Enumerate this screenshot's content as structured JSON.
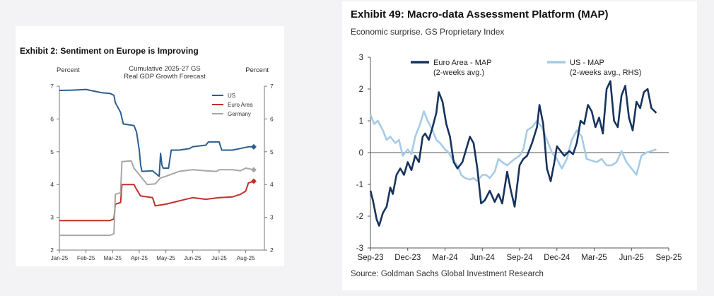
{
  "left": {
    "exhibit_title": "Exhibit 2: Sentiment on Europe is Improving",
    "chart_data": {
      "type": "line",
      "title_lines": [
        "Cumulative 2025-27 GS",
        "Real GDP Growth Forecast"
      ],
      "ylabel_left": "Percent",
      "ylabel_right": "Percent",
      "x_ticks": [
        "Jan-25",
        "Feb-25",
        "Mar-25",
        "Apr-25",
        "May-25",
        "Jun-25",
        "Jul-25",
        "Aug-25"
      ],
      "xlim": [
        0,
        7.7
      ],
      "y_ticks": [
        2,
        3,
        4,
        5,
        6,
        7
      ],
      "ylim": [
        2,
        7
      ],
      "legend_position": "top-right",
      "series": [
        {
          "name": "US",
          "color": "#2b5e8e",
          "points": [
            [
              0,
              6.87
            ],
            [
              0.5,
              6.88
            ],
            [
              1,
              6.9
            ],
            [
              1.3,
              6.85
            ],
            [
              1.6,
              6.8
            ],
            [
              1.9,
              6.78
            ],
            [
              2.05,
              6.72
            ],
            [
              2.1,
              6.5
            ],
            [
              2.3,
              6.2
            ],
            [
              2.4,
              5.85
            ],
            [
              2.8,
              5.8
            ],
            [
              2.9,
              5.6
            ],
            [
              3.0,
              5.05
            ],
            [
              3.05,
              4.6
            ],
            [
              3.1,
              4.4
            ],
            [
              3.5,
              4.42
            ],
            [
              3.6,
              4.35
            ],
            [
              3.75,
              4.25
            ],
            [
              3.8,
              4.95
            ],
            [
              3.85,
              4.6
            ],
            [
              3.9,
              4.5
            ],
            [
              4.1,
              4.5
            ],
            [
              4.2,
              5.05
            ],
            [
              4.5,
              5.05
            ],
            [
              4.9,
              5.1
            ],
            [
              5,
              5.15
            ],
            [
              5.5,
              5.2
            ],
            [
              5.6,
              5.3
            ],
            [
              6,
              5.3
            ],
            [
              6.1,
              5.05
            ],
            [
              6.5,
              5.05
            ],
            [
              6.8,
              5.1
            ],
            [
              7.1,
              5.15
            ],
            [
              7.3,
              5.15
            ]
          ]
        },
        {
          "name": "Euro Area",
          "color": "#c0302a",
          "points": [
            [
              0,
              2.9
            ],
            [
              0.5,
              2.9
            ],
            [
              1,
              2.9
            ],
            [
              1.9,
              2.9
            ],
            [
              2.05,
              2.95
            ],
            [
              2.1,
              3.4
            ],
            [
              2.3,
              3.45
            ],
            [
              2.35,
              4.0
            ],
            [
              2.8,
              4.0
            ],
            [
              2.9,
              3.85
            ],
            [
              3.05,
              3.65
            ],
            [
              3.5,
              3.6
            ],
            [
              3.6,
              3.35
            ],
            [
              4,
              3.4
            ],
            [
              4.5,
              3.5
            ],
            [
              5,
              3.6
            ],
            [
              5.5,
              3.55
            ],
            [
              6,
              3.6
            ],
            [
              6.5,
              3.62
            ],
            [
              6.8,
              3.7
            ],
            [
              7.0,
              3.8
            ],
            [
              7.1,
              4.05
            ],
            [
              7.3,
              4.1
            ]
          ]
        },
        {
          "name": "Germany",
          "color": "#a6a6a6",
          "points": [
            [
              0,
              2.45
            ],
            [
              1.9,
              2.45
            ],
            [
              2.05,
              2.5
            ],
            [
              2.1,
              3.7
            ],
            [
              2.3,
              3.75
            ],
            [
              2.35,
              4.7
            ],
            [
              2.7,
              4.72
            ],
            [
              2.8,
              4.5
            ],
            [
              3.0,
              4.3
            ],
            [
              3.3,
              4.0
            ],
            [
              3.6,
              4.02
            ],
            [
              3.8,
              4.2
            ],
            [
              4.0,
              4.25
            ],
            [
              4.5,
              4.4
            ],
            [
              5,
              4.45
            ],
            [
              5.5,
              4.42
            ],
            [
              5.9,
              4.4
            ],
            [
              6.0,
              4.45
            ],
            [
              6.5,
              4.45
            ],
            [
              6.8,
              4.42
            ],
            [
              7.0,
              4.5
            ],
            [
              7.3,
              4.45
            ]
          ]
        }
      ]
    }
  },
  "right": {
    "exhibit_title": "Exhibit 49: Macro-data Assessment Platform (MAP)",
    "subtitle": "Economic surprise. GS Proprietary Index",
    "source": "Source: Goldman Sachs Global Investment Research",
    "chart_data": {
      "type": "line",
      "x_ticks": [
        "Sep-23",
        "Dec-23",
        "Mar-24",
        "Jun-24",
        "Sep-24",
        "Dec-24",
        "Mar-25",
        "Jun-25",
        "Sep-25"
      ],
      "xlim": [
        0,
        24
      ],
      "y_ticks": [
        -3,
        -2,
        -1,
        0,
        1,
        2,
        3
      ],
      "ylim": [
        -3,
        3
      ],
      "legend_position": "top",
      "series": [
        {
          "name": "Euro Area - MAP",
          "legend_note": "(2-weeks avg.)",
          "color": "#17335e",
          "points": [
            [
              0,
              -1.2
            ],
            [
              0.2,
              -1.5
            ],
            [
              0.5,
              -2.1
            ],
            [
              0.7,
              -2.3
            ],
            [
              1,
              -1.9
            ],
            [
              1.3,
              -1.7
            ],
            [
              1.6,
              -1.1
            ],
            [
              1.8,
              -1.3
            ],
            [
              2.1,
              -0.7
            ],
            [
              2.4,
              -0.5
            ],
            [
              2.7,
              -0.7
            ],
            [
              3,
              -0.3
            ],
            [
              3.3,
              -0.55
            ],
            [
              3.6,
              -0.1
            ],
            [
              3.9,
              -0.3
            ],
            [
              4.2,
              0.5
            ],
            [
              4.4,
              0.6
            ],
            [
              4.7,
              0.4
            ],
            [
              5,
              0.8
            ],
            [
              5.3,
              1.25
            ],
            [
              5.5,
              1.9
            ],
            [
              5.8,
              1.6
            ],
            [
              6.1,
              0.9
            ],
            [
              6.4,
              0.5
            ],
            [
              6.7,
              -0.3
            ],
            [
              7,
              -0.5
            ],
            [
              7.4,
              -0.3
            ],
            [
              7.7,
              0.1
            ],
            [
              8,
              0.5
            ],
            [
              8.3,
              0.3
            ],
            [
              8.6,
              -0.5
            ],
            [
              8.9,
              -1.6
            ],
            [
              9.2,
              -1.5
            ],
            [
              9.6,
              -1.2
            ],
            [
              10,
              -1.55
            ],
            [
              10.3,
              -1.3
            ],
            [
              10.6,
              -1.6
            ],
            [
              11,
              -0.6
            ],
            [
              11.3,
              -1.2
            ],
            [
              11.6,
              -1.7
            ],
            [
              12,
              -0.4
            ],
            [
              12.3,
              -0.2
            ],
            [
              12.6,
              -0.1
            ],
            [
              13,
              0.3
            ],
            [
              13.4,
              0.8
            ],
            [
              13.6,
              1.5
            ],
            [
              13.9,
              0.9
            ],
            [
              14.2,
              -0.5
            ],
            [
              14.5,
              -0.9
            ],
            [
              14.8,
              -0.3
            ],
            [
              15,
              0.2
            ],
            [
              15.3,
              0.05
            ],
            [
              15.6,
              -0.1
            ],
            [
              16,
              0.05
            ],
            [
              16.3,
              -0.05
            ],
            [
              16.6,
              0.3
            ],
            [
              16.9,
              1.0
            ],
            [
              17.2,
              0.9
            ],
            [
              17.5,
              1.5
            ],
            [
              17.8,
              1.3
            ],
            [
              18.1,
              0.8
            ],
            [
              18.4,
              1.1
            ],
            [
              18.7,
              0.6
            ],
            [
              19,
              2.0
            ],
            [
              19.3,
              2.25
            ],
            [
              19.6,
              1.0
            ],
            [
              19.9,
              0.8
            ],
            [
              20.2,
              1.8
            ],
            [
              20.5,
              2.1
            ],
            [
              20.8,
              1.1
            ],
            [
              21.1,
              0.7
            ],
            [
              21.4,
              1.6
            ],
            [
              21.7,
              1.4
            ],
            [
              22,
              1.9
            ],
            [
              22.3,
              2.0
            ],
            [
              22.6,
              1.4
            ],
            [
              23,
              1.25
            ]
          ]
        },
        {
          "name": "US - MAP",
          "legend_note": "(2-weeks avg., RHS)",
          "color": "#a6cbe8",
          "points": [
            [
              0,
              1.2
            ],
            [
              0.3,
              0.9
            ],
            [
              0.6,
              1.0
            ],
            [
              1,
              0.7
            ],
            [
              1.3,
              0.4
            ],
            [
              1.6,
              0.5
            ],
            [
              2,
              0.3
            ],
            [
              2.3,
              0.4
            ],
            [
              2.6,
              -0.1
            ],
            [
              3,
              0.1
            ],
            [
              3.3,
              -0.05
            ],
            [
              3.6,
              0.5
            ],
            [
              4,
              0.9
            ],
            [
              4.3,
              1.3
            ],
            [
              4.6,
              1.0
            ],
            [
              5,
              0.7
            ],
            [
              5.3,
              0.4
            ],
            [
              5.6,
              0.3
            ],
            [
              6,
              0.1
            ],
            [
              6.3,
              0.0
            ],
            [
              6.6,
              -0.2
            ],
            [
              7,
              -0.4
            ],
            [
              7.3,
              -0.7
            ],
            [
              7.6,
              -0.8
            ],
            [
              8,
              -0.85
            ],
            [
              8.3,
              -0.8
            ],
            [
              8.6,
              -0.9
            ],
            [
              9,
              -0.7
            ],
            [
              9.3,
              -0.7
            ],
            [
              9.6,
              -0.8
            ],
            [
              10,
              -0.6
            ],
            [
              10.3,
              -0.2
            ],
            [
              10.6,
              -0.3
            ],
            [
              11,
              -0.4
            ],
            [
              11.3,
              -0.3
            ],
            [
              11.6,
              -0.2
            ],
            [
              12,
              -0.1
            ],
            [
              12.3,
              0.1
            ],
            [
              12.6,
              0.7
            ],
            [
              13,
              0.8
            ],
            [
              13.4,
              1.0
            ],
            [
              13.8,
              0.8
            ],
            [
              14.2,
              0.4
            ],
            [
              14.6,
              0.0
            ],
            [
              15,
              -0.2
            ],
            [
              15.4,
              -0.5
            ],
            [
              15.8,
              -0.2
            ],
            [
              16.2,
              0.4
            ],
            [
              16.6,
              0.7
            ],
            [
              17,
              0.5
            ],
            [
              17.4,
              -0.2
            ],
            [
              17.8,
              -0.25
            ],
            [
              18.2,
              -0.3
            ],
            [
              18.6,
              -0.2
            ],
            [
              19,
              -0.4
            ],
            [
              19.4,
              -0.4
            ],
            [
              19.8,
              -0.3
            ],
            [
              20.2,
              0.05
            ],
            [
              20.6,
              -0.3
            ],
            [
              21,
              -0.5
            ],
            [
              21.4,
              -0.7
            ],
            [
              21.8,
              -0.1
            ],
            [
              22.2,
              0.0
            ],
            [
              22.6,
              0.05
            ],
            [
              23,
              0.1
            ]
          ]
        }
      ]
    }
  }
}
